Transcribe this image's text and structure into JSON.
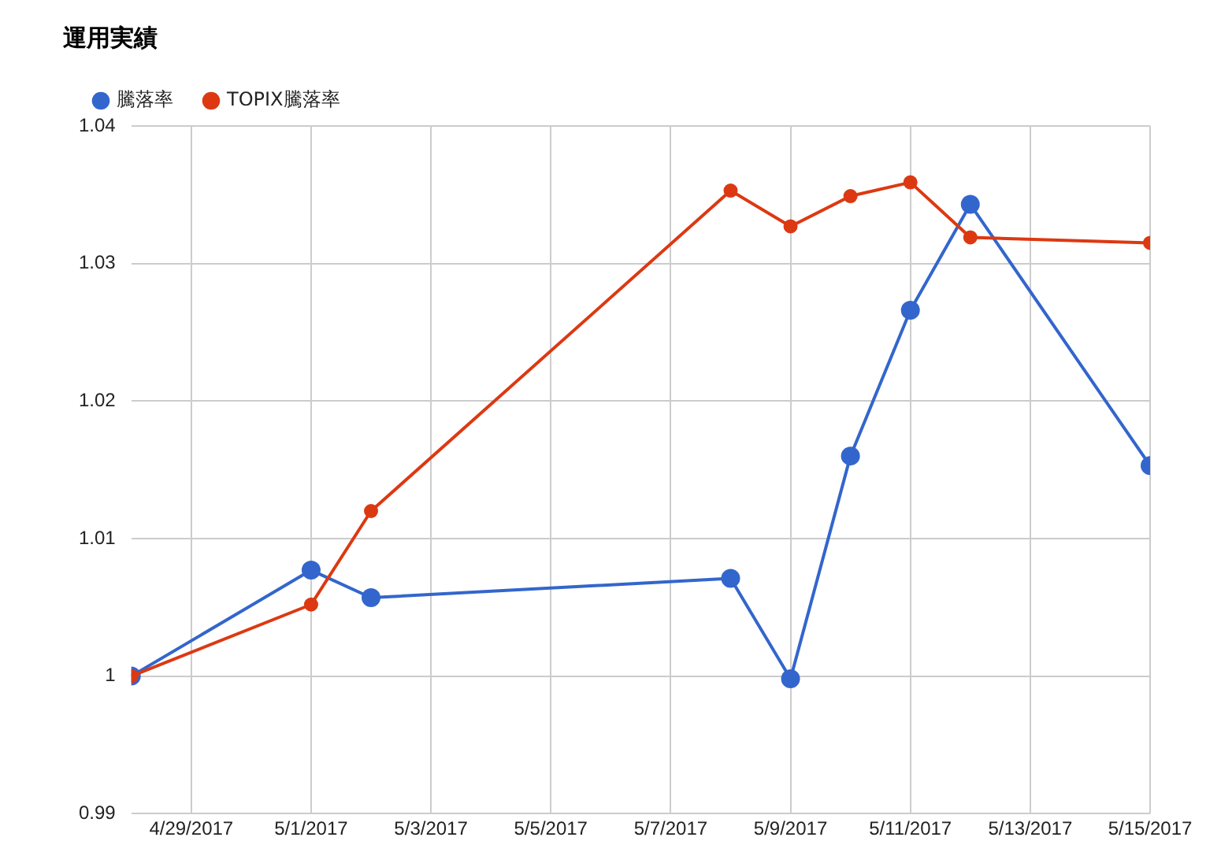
{
  "chart_data": {
    "type": "line",
    "title": "運用実績",
    "x": [
      "2017-04-28",
      "2017-05-01",
      "2017-05-02",
      "2017-05-08",
      "2017-05-09",
      "2017-05-10",
      "2017-05-11",
      "2017-05-12",
      "2017-05-15"
    ],
    "series": [
      {
        "name": "騰落率",
        "color": "#3366cc",
        "values": [
          1.0,
          1.0077,
          1.0057,
          1.0071,
          0.9998,
          1.016,
          1.0266,
          1.0343,
          1.0153
        ]
      },
      {
        "name": "TOPIX騰落率",
        "color": "#dc3912",
        "values": [
          1.0,
          1.0052,
          1.012,
          1.0353,
          1.0327,
          1.0349,
          1.0359,
          1.0319,
          1.0315
        ]
      }
    ],
    "xlim": [
      "2017-04-28",
      "2017-05-15"
    ],
    "xticks": [
      {
        "value": "2017-04-29",
        "label": "4/29/2017"
      },
      {
        "value": "2017-05-01",
        "label": "5/1/2017"
      },
      {
        "value": "2017-05-03",
        "label": "5/3/2017"
      },
      {
        "value": "2017-05-05",
        "label": "5/5/2017"
      },
      {
        "value": "2017-05-07",
        "label": "5/7/2017"
      },
      {
        "value": "2017-05-09",
        "label": "5/9/2017"
      },
      {
        "value": "2017-05-11",
        "label": "5/11/2017"
      },
      {
        "value": "2017-05-13",
        "label": "5/13/2017"
      },
      {
        "value": "2017-05-15",
        "label": "5/15/2017"
      }
    ],
    "ylim": [
      0.99,
      1.04
    ],
    "yticks": [
      0.99,
      1,
      1.01,
      1.02,
      1.03,
      1.04
    ],
    "grid": true,
    "legend": "top left",
    "marker": "circle",
    "line_style": "solid"
  }
}
